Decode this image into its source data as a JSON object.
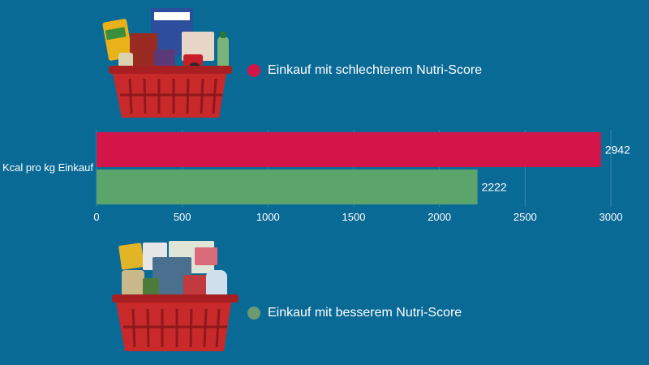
{
  "chart_data": {
    "type": "bar",
    "orientation": "horizontal",
    "categories": [
      "Kcal pro kg Einkauf"
    ],
    "series": [
      {
        "name": "Einkauf mit schlechterem Nutri-Score",
        "values": [
          2942
        ],
        "color": "#d4154a"
      },
      {
        "name": "Einkauf mit besserem Nutri-Score",
        "values": [
          2222
        ],
        "color": "#5ba56c"
      }
    ],
    "xlim": [
      0,
      3150
    ],
    "xticks": [
      0,
      500,
      1000,
      1500,
      2000,
      2500,
      3000
    ],
    "data_labels": [
      "2942",
      "2222"
    ],
    "grid": true,
    "legend": [
      "top",
      "bottom"
    ]
  },
  "legend": {
    "worse_label": "Einkauf mit schlechterem Nutri-Score",
    "better_label": "Einkauf mit besserem Nutri-Score",
    "worse_color": "#d4154a",
    "better_color": "#6a9a70"
  },
  "images": {
    "top_basket": "shopping-basket-icon",
    "bottom_basket": "shopping-basket-icon"
  },
  "colors": {
    "background": "#0a6a96",
    "text": "#ffffff"
  }
}
